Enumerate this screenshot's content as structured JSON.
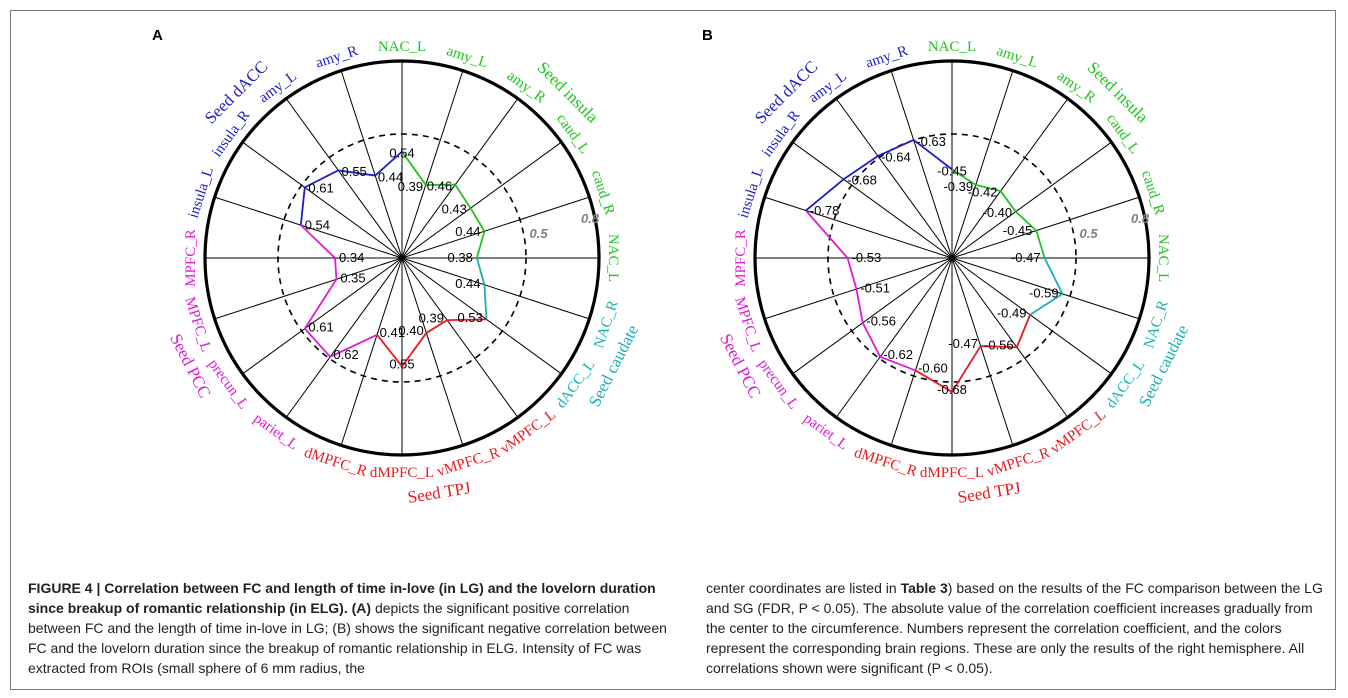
{
  "panels": [
    {
      "letter": "A",
      "regions": [
        "NAC_L",
        "amy_L",
        "amy_R",
        "caud_L",
        "caud_R",
        "NAC_L",
        "NAC_R",
        "dACC_L",
        "vMPFC_L",
        "vMPFC_R",
        "dMPFC_L",
        "dMPFC_R",
        "pariet_L",
        "precun_L",
        "MPFC_L",
        "MPFC_R",
        "insula_L",
        "insula_R",
        "amy_L",
        "amy_R"
      ],
      "values": [
        0.54,
        0.39,
        0.46,
        0.43,
        0.44,
        0.38,
        0.44,
        0.53,
        0.39,
        0.4,
        0.55,
        0.41,
        0.62,
        0.61,
        0.35,
        0.34,
        0.54,
        0.61,
        0.55,
        0.44
      ],
      "value_labels": [
        "0.54",
        "0.39",
        "0.46",
        "0.43",
        "0.44",
        "0.38",
        "0.44",
        "0.53",
        "0.39",
        "0.40",
        "0.55",
        "0.41",
        "0.62",
        "0.61",
        "0.35",
        "0.34",
        "0.54",
        "0.61",
        "0.55",
        "0.44"
      ],
      "scale_labels": [
        "0.5",
        "0.8"
      ],
      "seeds": [
        "Seed insula",
        "Seed caudate",
        "Seed TPJ",
        "Seed PCC",
        "Seed dACC"
      ]
    },
    {
      "letter": "B",
      "regions": [
        "NAC_L",
        "amy_L",
        "amy_R",
        "caud_L",
        "caud_R",
        "NAC_L",
        "NAC_R",
        "dACC_L",
        "vMPFC_L",
        "vMPFC_R",
        "dMPFC_L",
        "dMPFC_R",
        "pariet_L",
        "precun_L",
        "MPFC_L",
        "MPFC_R",
        "insula_L",
        "insula_R",
        "amy_L",
        "amy_R"
      ],
      "values": [
        -0.45,
        -0.39,
        -0.42,
        -0.4,
        -0.45,
        -0.47,
        -0.59,
        -0.49,
        -0.56,
        -0.47,
        -0.68,
        -0.6,
        -0.62,
        -0.56,
        -0.51,
        -0.53,
        -0.78,
        -0.68,
        -0.64,
        -0.63
      ],
      "value_labels": [
        "-0.45",
        "-0.39",
        "-0.42",
        "-0.40",
        "-0.45",
        "-0.47",
        "-0.59",
        "-0.49",
        "-0.56",
        "-0.47",
        "-0.68",
        "-0.60",
        "-0.62",
        "-0.56",
        "-0.51",
        "-0.53",
        "-0.78",
        "-0.68",
        "-0.64",
        "-0.63"
      ],
      "scale_labels": [
        "0.5",
        "0.8"
      ],
      "seeds": [
        "Seed insula",
        "Seed caudate",
        "Seed TPJ",
        "Seed PCC",
        "Seed dACC"
      ]
    }
  ],
  "colors": {
    "insula": "#1fc41f",
    "caudate": "#19b2b2",
    "tpj": "#e8191f",
    "pcc": "#e01ad6",
    "dacc": "#1d1dc8",
    "grid": "#000000"
  },
  "caption": {
    "title": "FIGURE 4 | Correlation between FC and length of time in-love (in LG) and the lovelorn duration since breakup of romantic relationship (in ELG). (A)",
    "left_body": "depicts the significant positive correlation between FC and the length of time in-love in LG; (B) shows the significant negative correlation between FC and the lovelorn duration since the breakup of romantic relationship in ELG. Intensity of FC was extracted from ROIs (small sphere of 6 mm radius, the",
    "right_pre": "center coordinates are listed in",
    "right_table": "Table 3",
    "right_body": ") based on the results of the FC comparison between the LG and SG (FDR, P < 0.05). The absolute value of the correlation coefficient increases gradually from the center to the circumference. Numbers represent the correlation coefficient, and the colors represent the corresponding brain regions. These are only the results of the right hemisphere. All correlations shown were significant (P < 0.05)."
  }
}
